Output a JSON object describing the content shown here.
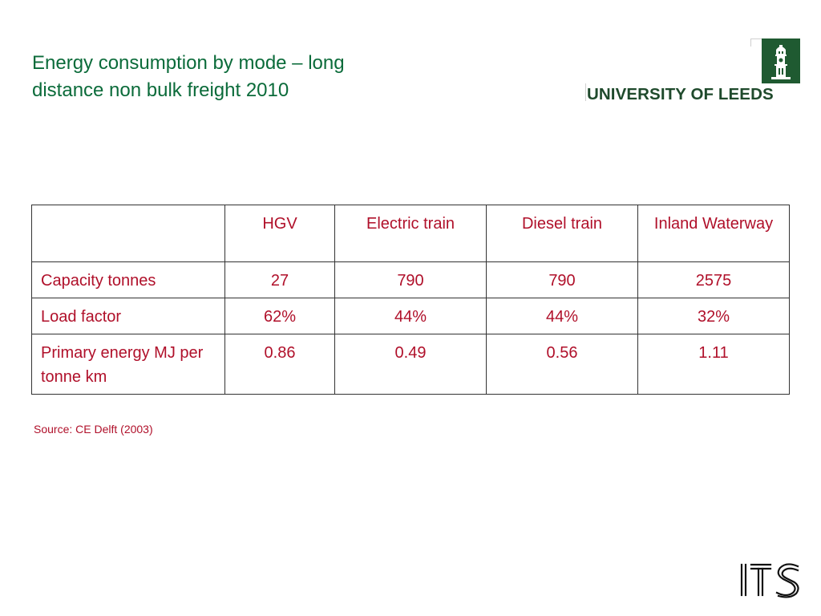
{
  "slide": {
    "title_lines": [
      "Energy consumption by mode – long",
      "distance non bulk freight 2010"
    ],
    "logo": {
      "wordmark": "UNIVERSITY OF LEEDS",
      "icon": "leeds-tower-crest-icon",
      "color": "#1f4a2c"
    },
    "its_logo": {
      "text": "ITS",
      "icon": "its-logo-icon"
    },
    "source": "Source: CE Delft (2003)"
  },
  "table": {
    "headers": [
      "",
      "HGV",
      "Electric train",
      "Diesel train",
      "Inland Waterway"
    ],
    "rows": [
      {
        "label": "Capacity tonnes",
        "values": [
          "27",
          "790",
          "790",
          "2575"
        ]
      },
      {
        "label": "Load factor",
        "values": [
          "62%",
          "44%",
          "44%",
          "32%"
        ]
      },
      {
        "label": "Primary energy MJ per tonne km",
        "values": [
          "0.86",
          "0.49",
          "0.56",
          "1.11"
        ]
      }
    ]
  },
  "colors": {
    "title": "#0b6b3a",
    "table_text": "#b0102a",
    "border": "#333333"
  }
}
